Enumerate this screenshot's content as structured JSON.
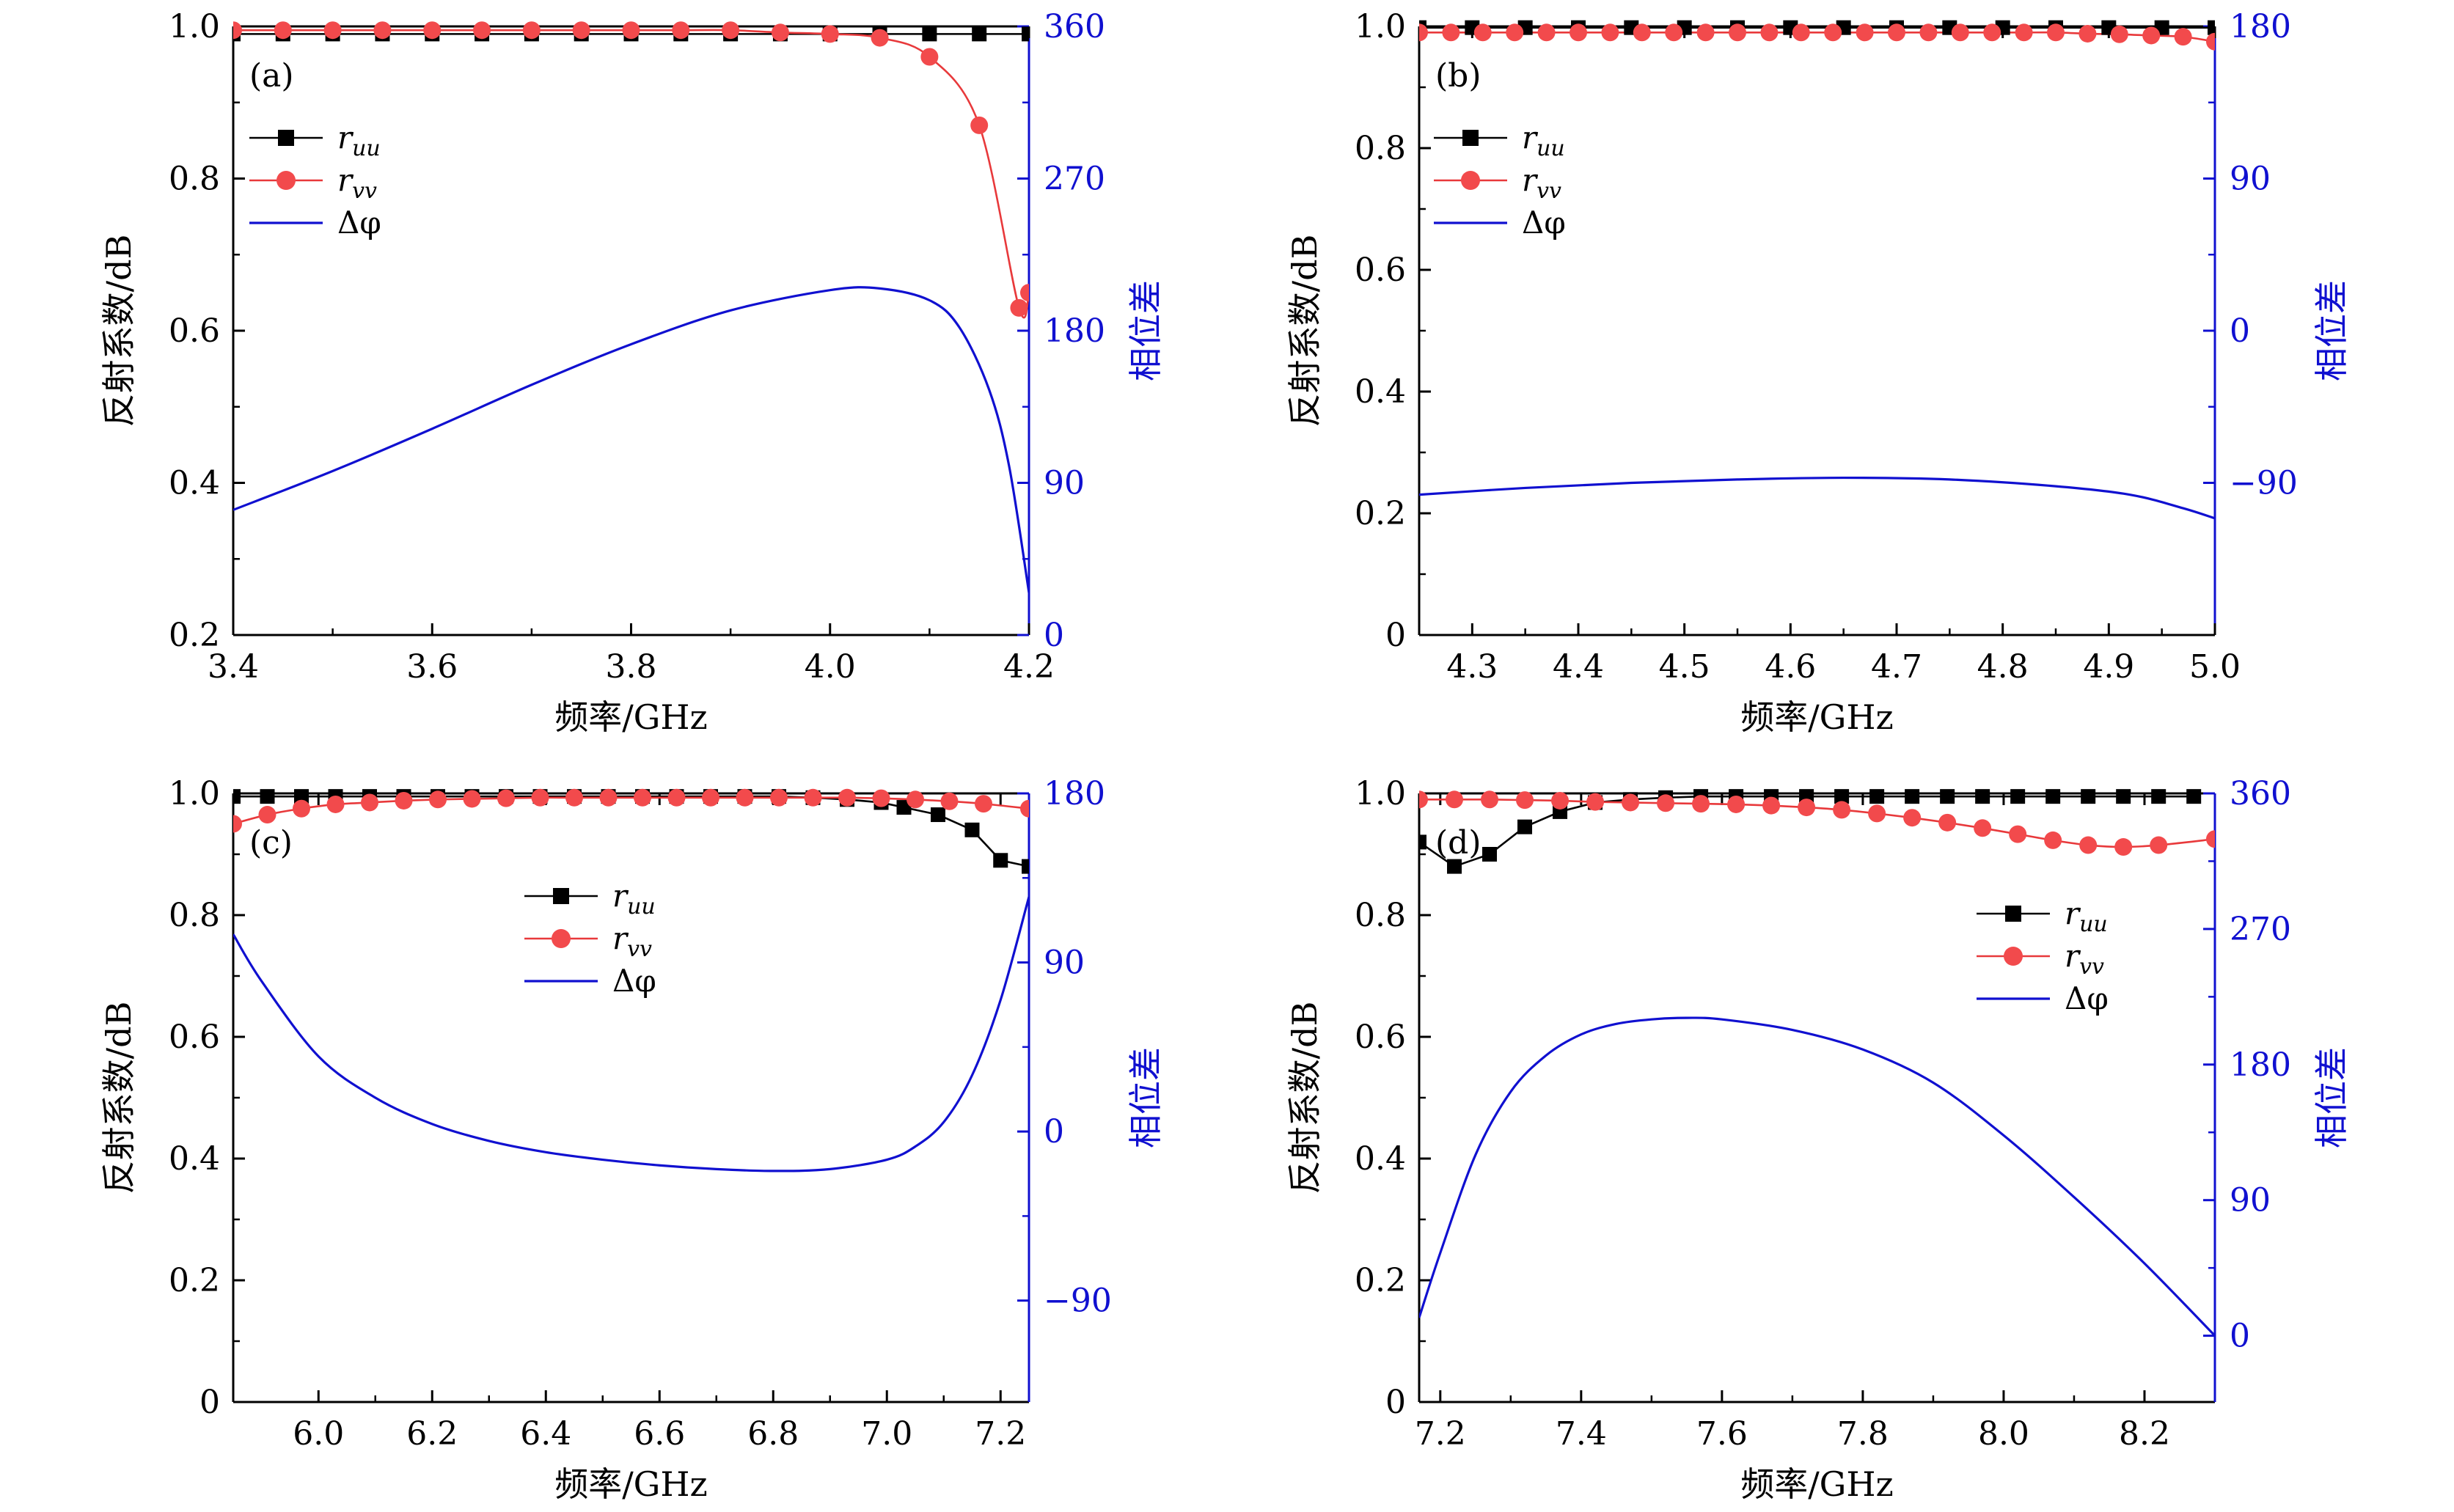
{
  "figure": {
    "colors": {
      "r_uu": "#000000",
      "r_vv": "#e8393b",
      "r_vv_marker": "#f24a4c",
      "delta_phi": "#1010d0",
      "axis": "#000000",
      "right_axis": "#1010d0"
    }
  },
  "chart_data": [
    {
      "id": "a",
      "type": "line",
      "panel_label": "(a)",
      "xlabel": "频率/GHz",
      "ylabel": "反射系数/dB",
      "y2label": "相位差",
      "xlim": [
        3.4,
        4.2
      ],
      "ylim": [
        0.2,
        1.0
      ],
      "y2lim": [
        0,
        360
      ],
      "xticks": [
        3.4,
        3.6,
        3.8,
        4.0,
        4.2
      ],
      "xtick_labels": [
        "3.4",
        "3.6",
        "3.8",
        "4.0",
        "4.2"
      ],
      "yticks": [
        0.2,
        0.4,
        0.6,
        0.8,
        1.0
      ],
      "ytick_labels": [
        "0.2",
        "0.4",
        "0.6",
        "0.8",
        "1.0"
      ],
      "y2ticks": [
        0,
        90,
        180,
        270,
        360
      ],
      "y2tick_labels": [
        "0",
        "90",
        "180",
        "270",
        "360"
      ],
      "legend_position": "upper-left",
      "legend": [
        {
          "key": "r_uu",
          "label_main": "r",
          "label_sub": "uu"
        },
        {
          "key": "r_vv",
          "label_main": "r",
          "label_sub": "vv"
        },
        {
          "key": "delta_phi",
          "label_main": "Δφ",
          "label_sub": ""
        }
      ],
      "series": {
        "r_uu": {
          "x": [
            3.4,
            3.45,
            3.5,
            3.55,
            3.6,
            3.65,
            3.7,
            3.75,
            3.8,
            3.85,
            3.9,
            3.95,
            4.0,
            4.05,
            4.1,
            4.15,
            4.2
          ],
          "y": [
            0.99,
            0.99,
            0.99,
            0.99,
            0.99,
            0.99,
            0.99,
            0.99,
            0.99,
            0.99,
            0.99,
            0.99,
            0.99,
            0.99,
            0.99,
            0.99,
            0.99
          ]
        },
        "r_vv": {
          "x": [
            3.4,
            3.45,
            3.5,
            3.55,
            3.6,
            3.65,
            3.7,
            3.75,
            3.8,
            3.85,
            3.9,
            3.95,
            4.0,
            4.05,
            4.1,
            4.15,
            4.19,
            4.2
          ],
          "y": [
            0.995,
            0.995,
            0.995,
            0.995,
            0.995,
            0.995,
            0.995,
            0.995,
            0.995,
            0.995,
            0.995,
            0.992,
            0.99,
            0.985,
            0.96,
            0.87,
            0.63,
            0.65
          ]
        },
        "delta_phi": {
          "x": [
            3.4,
            3.5,
            3.6,
            3.7,
            3.8,
            3.9,
            4.0,
            4.05,
            4.1,
            4.13,
            4.16,
            4.18,
            4.2
          ],
          "y": [
            74,
            97,
            122,
            148,
            172,
            192,
            204,
            205,
            198,
            182,
            145,
            100,
            25
          ]
        }
      }
    },
    {
      "id": "b",
      "type": "line",
      "panel_label": "(b)",
      "xlabel": "频率/GHz",
      "ylabel": "反射系数/dB",
      "y2label": "相位差",
      "xlim": [
        4.25,
        5.0
      ],
      "ylim": [
        0.0,
        1.0
      ],
      "y2lim": [
        -180,
        180
      ],
      "xticks": [
        4.3,
        4.4,
        4.5,
        4.6,
        4.7,
        4.8,
        4.9,
        5.0
      ],
      "xtick_labels": [
        "4.3",
        "4.4",
        "4.5",
        "4.6",
        "4.7",
        "4.8",
        "4.9",
        "5.0"
      ],
      "yticks": [
        0.0,
        0.2,
        0.4,
        0.6,
        0.8,
        1.0
      ],
      "ytick_labels": [
        "0",
        "0.2",
        "0.4",
        "0.6",
        "0.8",
        "1.0"
      ],
      "y2ticks": [
        -90,
        0,
        90,
        180
      ],
      "y2tick_labels": [
        "−90",
        "0",
        "90",
        "180"
      ],
      "legend_position": "upper-left",
      "legend": [
        {
          "key": "r_uu",
          "label_main": "r",
          "label_sub": "uu"
        },
        {
          "key": "r_vv",
          "label_main": "r",
          "label_sub": "vv"
        },
        {
          "key": "delta_phi",
          "label_main": "Δφ",
          "label_sub": ""
        }
      ],
      "series": {
        "r_uu": {
          "x": [
            4.25,
            4.3,
            4.35,
            4.4,
            4.45,
            4.5,
            4.55,
            4.6,
            4.65,
            4.7,
            4.75,
            4.8,
            4.85,
            4.9,
            4.95,
            5.0
          ],
          "y": [
            0.998,
            0.998,
            0.998,
            0.998,
            0.998,
            0.998,
            0.998,
            0.998,
            0.998,
            0.998,
            0.998,
            0.998,
            0.998,
            0.998,
            0.998,
            0.998
          ]
        },
        "r_vv": {
          "x": [
            4.25,
            4.28,
            4.31,
            4.34,
            4.37,
            4.4,
            4.43,
            4.46,
            4.49,
            4.52,
            4.55,
            4.58,
            4.61,
            4.64,
            4.67,
            4.7,
            4.73,
            4.76,
            4.79,
            4.82,
            4.85,
            4.88,
            4.91,
            4.94,
            4.97,
            5.0
          ],
          "y": [
            0.99,
            0.99,
            0.99,
            0.99,
            0.99,
            0.99,
            0.99,
            0.99,
            0.99,
            0.99,
            0.99,
            0.99,
            0.99,
            0.99,
            0.99,
            0.99,
            0.99,
            0.99,
            0.99,
            0.99,
            0.99,
            0.988,
            0.987,
            0.985,
            0.983,
            0.975
          ]
        },
        "delta_phi": {
          "x": [
            4.25,
            4.35,
            4.45,
            4.55,
            4.65,
            4.75,
            4.85,
            4.92,
            4.97,
            5.0
          ],
          "y": [
            -97,
            -93,
            -90,
            -88,
            -87,
            -88,
            -92,
            -97,
            -105,
            -111
          ]
        }
      }
    },
    {
      "id": "c",
      "type": "line",
      "panel_label": "(c)",
      "xlabel": "频率/GHz",
      "ylabel": "反射系数/dB",
      "y2label": "相位差",
      "xlim": [
        5.85,
        7.25
      ],
      "ylim": [
        0.0,
        1.0
      ],
      "y2lim": [
        -144,
        180
      ],
      "xticks": [
        6.0,
        6.2,
        6.4,
        6.6,
        6.8,
        7.0,
        7.2
      ],
      "xtick_labels": [
        "6.0",
        "6.2",
        "6.4",
        "6.6",
        "6.8",
        "7.0",
        "7.2"
      ],
      "yticks": [
        0.0,
        0.2,
        0.4,
        0.6,
        0.8,
        1.0
      ],
      "ytick_labels": [
        "0",
        "0.2",
        "0.4",
        "0.6",
        "0.8",
        "1.0"
      ],
      "y2ticks": [
        -90,
        0,
        90,
        180
      ],
      "y2tick_labels": [
        "−90",
        "0",
        "90",
        "180"
      ],
      "legend_position": "upper-center",
      "legend": [
        {
          "key": "r_uu",
          "label_main": "r",
          "label_sub": "uu"
        },
        {
          "key": "r_vv",
          "label_main": "r",
          "label_sub": "vv"
        },
        {
          "key": "delta_phi",
          "label_main": "Δφ",
          "label_sub": ""
        }
      ],
      "series": {
        "r_uu": {
          "x": [
            5.85,
            5.91,
            5.97,
            6.03,
            6.09,
            6.15,
            6.21,
            6.27,
            6.33,
            6.39,
            6.45,
            6.51,
            6.57,
            6.63,
            6.69,
            6.75,
            6.81,
            6.87,
            6.93,
            6.99,
            7.03,
            7.09,
            7.15,
            7.2,
            7.25
          ],
          "y": [
            0.995,
            0.995,
            0.995,
            0.995,
            0.995,
            0.995,
            0.995,
            0.995,
            0.995,
            0.995,
            0.995,
            0.995,
            0.995,
            0.995,
            0.995,
            0.995,
            0.995,
            0.993,
            0.99,
            0.985,
            0.977,
            0.965,
            0.94,
            0.89,
            0.88
          ]
        },
        "r_vv": {
          "x": [
            5.85,
            5.91,
            5.97,
            6.03,
            6.09,
            6.15,
            6.21,
            6.27,
            6.33,
            6.39,
            6.45,
            6.51,
            6.57,
            6.63,
            6.69,
            6.75,
            6.81,
            6.87,
            6.93,
            6.99,
            7.05,
            7.11,
            7.17,
            7.25
          ],
          "y": [
            0.95,
            0.965,
            0.975,
            0.982,
            0.985,
            0.988,
            0.99,
            0.991,
            0.992,
            0.993,
            0.993,
            0.993,
            0.993,
            0.993,
            0.993,
            0.993,
            0.993,
            0.993,
            0.993,
            0.992,
            0.99,
            0.987,
            0.983,
            0.975
          ]
        },
        "delta_phi": {
          "x": [
            5.85,
            5.9,
            6.0,
            6.1,
            6.2,
            6.3,
            6.4,
            6.5,
            6.6,
            6.7,
            6.8,
            6.9,
            7.0,
            7.05,
            7.1,
            7.15,
            7.2,
            7.25
          ],
          "y": [
            105,
            80,
            40,
            18,
            4,
            -5,
            -11,
            -15,
            -18,
            -20,
            -21,
            -20,
            -15,
            -8,
            5,
            30,
            70,
            125
          ]
        }
      }
    },
    {
      "id": "d",
      "type": "line",
      "panel_label": "(d)",
      "xlabel": "频率/GHz",
      "ylabel": "反射系数/dB",
      "y2label": "相位差",
      "xlim": [
        7.17,
        8.3
      ],
      "ylim": [
        0.0,
        1.0
      ],
      "y2lim": [
        -44,
        360
      ],
      "xticks": [
        7.2,
        7.4,
        7.6,
        7.8,
        8.0,
        8.2
      ],
      "xtick_labels": [
        "7.2",
        "7.4",
        "7.6",
        "7.8",
        "8.0",
        "8.2"
      ],
      "yticks": [
        0.0,
        0.2,
        0.4,
        0.6,
        0.8,
        1.0
      ],
      "ytick_labels": [
        "0",
        "0.2",
        "0.4",
        "0.6",
        "0.8",
        "1.0"
      ],
      "y2ticks": [
        0,
        90,
        180,
        270,
        360
      ],
      "y2tick_labels": [
        "0",
        "90",
        "180",
        "270",
        "360"
      ],
      "legend_position": "upper-right",
      "legend": [
        {
          "key": "r_uu",
          "label_main": "r",
          "label_sub": "uu"
        },
        {
          "key": "r_vv",
          "label_main": "r",
          "label_sub": "vv"
        },
        {
          "key": "delta_phi",
          "label_main": "Δφ",
          "label_sub": ""
        }
      ],
      "series": {
        "r_uu": {
          "x": [
            7.17,
            7.22,
            7.27,
            7.32,
            7.37,
            7.42,
            7.47,
            7.52,
            7.57,
            7.62,
            7.67,
            7.72,
            7.77,
            7.82,
            7.87,
            7.92,
            7.97,
            8.02,
            8.07,
            8.12,
            8.17,
            8.22,
            8.27
          ],
          "y": [
            0.92,
            0.88,
            0.9,
            0.945,
            0.97,
            0.985,
            0.99,
            0.993,
            0.995,
            0.995,
            0.995,
            0.995,
            0.995,
            0.995,
            0.995,
            0.995,
            0.995,
            0.995,
            0.995,
            0.995,
            0.995,
            0.995,
            0.995
          ]
        },
        "r_vv": {
          "x": [
            7.17,
            7.22,
            7.27,
            7.32,
            7.37,
            7.42,
            7.47,
            7.52,
            7.57,
            7.62,
            7.67,
            7.72,
            7.77,
            7.82,
            7.87,
            7.92,
            7.97,
            8.02,
            8.07,
            8.12,
            8.17,
            8.22,
            8.3
          ],
          "y": [
            0.99,
            0.99,
            0.99,
            0.989,
            0.988,
            0.986,
            0.985,
            0.984,
            0.983,
            0.982,
            0.98,
            0.977,
            0.973,
            0.967,
            0.96,
            0.952,
            0.943,
            0.933,
            0.923,
            0.915,
            0.912,
            0.915,
            0.925
          ]
        },
        "delta_phi": {
          "x": [
            7.17,
            7.2,
            7.25,
            7.3,
            7.35,
            7.4,
            7.45,
            7.5,
            7.55,
            7.6,
            7.7,
            7.8,
            7.9,
            8.0,
            8.1,
            8.2,
            8.3
          ],
          "y": [
            12,
            55,
            120,
            162,
            186,
            200,
            207,
            210,
            211,
            210,
            203,
            190,
            168,
            133,
            92,
            48,
            0
          ]
        }
      }
    }
  ]
}
